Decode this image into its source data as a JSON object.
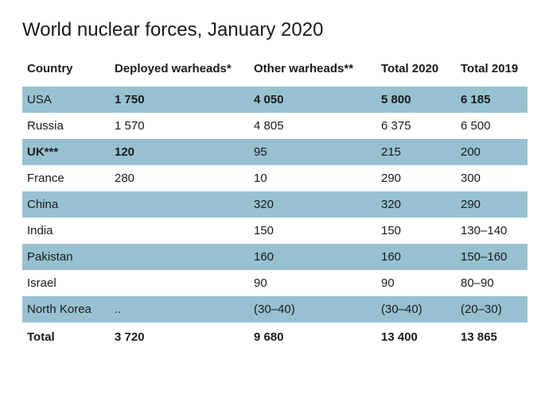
{
  "title": "World nuclear forces, January 2020",
  "columns": [
    {
      "label": "Country",
      "class": "col-country"
    },
    {
      "label": "Deployed warheads*",
      "class": "col-deployed"
    },
    {
      "label": "Other warheads**",
      "class": "col-other"
    },
    {
      "label": "Total 2020",
      "class": "col-t2020"
    },
    {
      "label": "Total 2019",
      "class": "col-t2019"
    }
  ],
  "rows": [
    {
      "striped": true,
      "bold_cols": [
        1,
        2,
        3,
        4
      ],
      "cells": [
        "USA",
        "1 750",
        "4 050",
        "5 800",
        "6 185"
      ]
    },
    {
      "striped": false,
      "bold_cols": [],
      "cells": [
        "Russia",
        "1 570",
        "4 805",
        "6 375",
        "6 500"
      ]
    },
    {
      "striped": true,
      "bold_cols": [
        0,
        1
      ],
      "cells": [
        "UK***",
        "120",
        "95",
        "215",
        "200"
      ]
    },
    {
      "striped": false,
      "bold_cols": [],
      "cells": [
        "France",
        "280",
        "10",
        "290",
        "300"
      ]
    },
    {
      "striped": true,
      "bold_cols": [],
      "cells": [
        "China",
        "",
        "320",
        "320",
        "290"
      ]
    },
    {
      "striped": false,
      "bold_cols": [],
      "cells": [
        "India",
        "",
        "150",
        "150",
        "130–140"
      ]
    },
    {
      "striped": true,
      "bold_cols": [],
      "cells": [
        "Pakistan",
        "",
        "160",
        "160",
        "150–160"
      ]
    },
    {
      "striped": false,
      "bold_cols": [],
      "cells": [
        "Israel",
        "",
        "90",
        "90",
        "80–90"
      ]
    },
    {
      "striped": true,
      "bold_cols": [],
      "cells": [
        "North Korea",
        "..",
        "(30–40)",
        "(30–40)",
        "(20–30)"
      ]
    }
  ],
  "total": {
    "label": "Total",
    "cells": [
      "Total",
      "3 720",
      "9 680",
      "13 400",
      "13 865"
    ]
  },
  "colors": {
    "stripe": "#97c1d1",
    "background": "#ffffff",
    "text": "#1a1a1a"
  }
}
